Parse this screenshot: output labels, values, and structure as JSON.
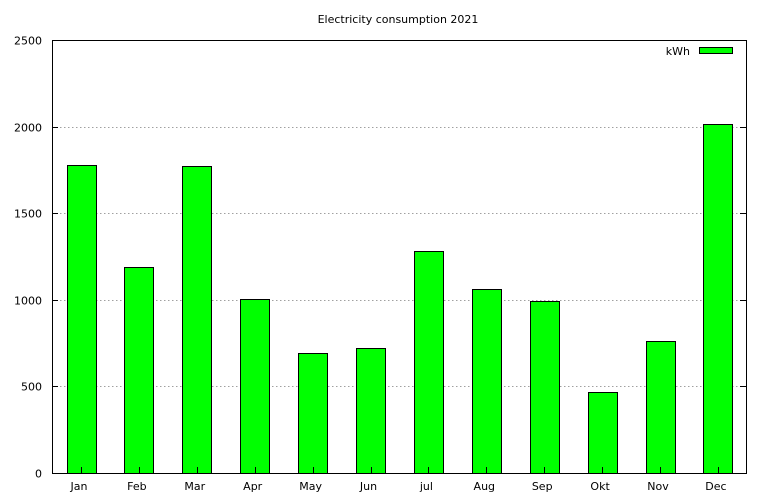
{
  "chart_data": {
    "type": "bar",
    "title": "Electricity consumption 2021",
    "xlabel": "",
    "ylabel": "",
    "categories": [
      "Jan",
      "Feb",
      "Mar",
      "Apr",
      "May",
      "Jun",
      "jul",
      "Aug",
      "Sep",
      "Okt",
      "Nov",
      "Dec"
    ],
    "series": [
      {
        "name": "kWh",
        "values": [
          1780,
          1190,
          1775,
          1005,
          690,
          720,
          1280,
          1065,
          995,
          470,
          765,
          2015
        ]
      }
    ],
    "ylim": [
      0,
      2500
    ],
    "yticks": [
      0,
      500,
      1000,
      1500,
      2000,
      2500
    ],
    "grid": true,
    "legend_position": "top-right",
    "colors": {
      "bar": "#00ff00",
      "grid": "#a0a0a0"
    }
  }
}
